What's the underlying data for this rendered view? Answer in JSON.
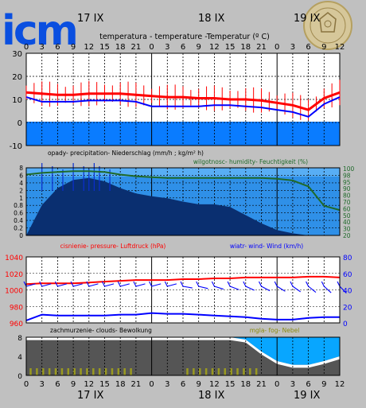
{
  "header": {
    "logo_text": "icm",
    "day_labels": [
      "17 IX",
      "18 IX",
      "19 IX"
    ]
  },
  "hours": [
    "0",
    "3",
    "6",
    "9",
    "12",
    "15",
    "18",
    "21",
    "0",
    "3",
    "6",
    "9",
    "12",
    "15",
    "18",
    "21",
    "0",
    "3",
    "6",
    "9",
    "12"
  ],
  "colors": {
    "background": "#c0c0c0",
    "temp_line": "#ff0000",
    "dew_line": "#0000ff",
    "frost_band": "#0a7cff",
    "precip_bg": "#2f90e8",
    "precip_bars": "#0a2f70",
    "humidity_line": "#1f6a2a",
    "pressure_line": "#ff0000",
    "wind_line": "#0000ff",
    "cloud_fill": "#555555",
    "fog_bars": "#9a9a20",
    "sky_blue": "#08a6ff"
  },
  "chart_data": [
    {
      "type": "line",
      "name": "temperature",
      "title": "temperatura - temperature -Temperatur (º C)",
      "yticks": [
        "30",
        "20",
        "10",
        "0",
        "-10"
      ],
      "ylim": [
        -10,
        30
      ],
      "x": [
        0,
        3,
        6,
        9,
        12,
        15,
        18,
        21,
        24,
        27,
        30,
        33,
        36,
        39,
        42,
        45,
        48,
        51,
        54,
        57,
        60
      ],
      "series": [
        {
          "values": [
            13,
            12.5,
            12,
            12,
            12.5,
            12.5,
            12.5,
            12,
            11.5,
            11,
            11,
            10.5,
            10.5,
            10,
            10,
            9.5,
            8.5,
            7.5,
            5.5,
            10.5,
            13
          ]
        },
        {
          "values": [
            11,
            9,
            9,
            9,
            9.5,
            9.5,
            9.5,
            9,
            7,
            7,
            7,
            7,
            7.5,
            7.5,
            7,
            6.5,
            5.5,
            4.5,
            2.5,
            8,
            11
          ]
        }
      ]
    },
    {
      "type": "bar",
      "name": "precipitation-humidity",
      "title": "opady- precipitation- Niederschlag (mm/h ; kg/m² h)",
      "title2": "wilgotnosc- humidity- Feuchtigkeit (%)",
      "yticks_left": [
        "8",
        "6",
        "4",
        "2",
        "1",
        "0.8",
        "0.6",
        "0.4",
        "0.2",
        "0"
      ],
      "yticks_right": [
        "100",
        "98",
        "95",
        "90",
        "80",
        "70",
        "60",
        "50",
        "40",
        "30",
        "20"
      ],
      "x": [
        0,
        3,
        6,
        9,
        12,
        15,
        18,
        21,
        24,
        27,
        30,
        33,
        36,
        39,
        42,
        45,
        48,
        51,
        54,
        57,
        60
      ],
      "humidity": [
        92,
        94,
        95,
        96,
        96,
        95,
        92,
        90,
        89,
        88,
        88,
        88,
        88,
        88,
        88,
        88,
        87,
        85,
        78,
        55,
        50
      ],
      "humidity_ylim": [
        20,
        100
      ]
    },
    {
      "type": "line",
      "name": "pressure-wind",
      "title": "cisnienie- pressure- Luftdruck (hPa)",
      "title2": "wiatr- wind- Wind (km/h)",
      "yticks_left": [
        "1040",
        "1020",
        "1000",
        "980",
        "960"
      ],
      "yticks_right": [
        "80",
        "60",
        "40",
        "20",
        "0"
      ],
      "ylim_left": [
        960,
        1040
      ],
      "ylim_right": [
        0,
        80
      ],
      "x": [
        0,
        3,
        6,
        9,
        12,
        15,
        18,
        21,
        24,
        27,
        30,
        33,
        36,
        39,
        42,
        45,
        48,
        51,
        54,
        57,
        60
      ],
      "series": [
        {
          "values": [
            1007,
            1008,
            1008,
            1008,
            1009,
            1010,
            1011,
            1012,
            1012,
            1012,
            1013,
            1013,
            1014,
            1014,
            1015,
            1015,
            1015,
            1015,
            1016,
            1016,
            1015
          ]
        },
        {
          "values": [
            3,
            10,
            9,
            9,
            9,
            9,
            10,
            10,
            12,
            11,
            11,
            10,
            9,
            8,
            7,
            5,
            4,
            4,
            6,
            7,
            7
          ]
        }
      ]
    },
    {
      "type": "area",
      "name": "clouds-fog",
      "title": "zachmurzenie- clouds- Bewolkung",
      "title2": "mgla- fog- Nebel",
      "yticks": [
        "8",
        "4",
        "0"
      ],
      "ylim": [
        0,
        8
      ],
      "x": [
        0,
        3,
        6,
        9,
        12,
        15,
        18,
        21,
        24,
        27,
        30,
        33,
        36,
        39,
        42,
        45,
        48,
        51,
        54,
        57,
        60
      ],
      "values": [
        8,
        8,
        8,
        8,
        8,
        8,
        8,
        8,
        8,
        8,
        8,
        8,
        8,
        8,
        7.5,
        5,
        3,
        2.2,
        2.2,
        3,
        4
      ]
    }
  ]
}
